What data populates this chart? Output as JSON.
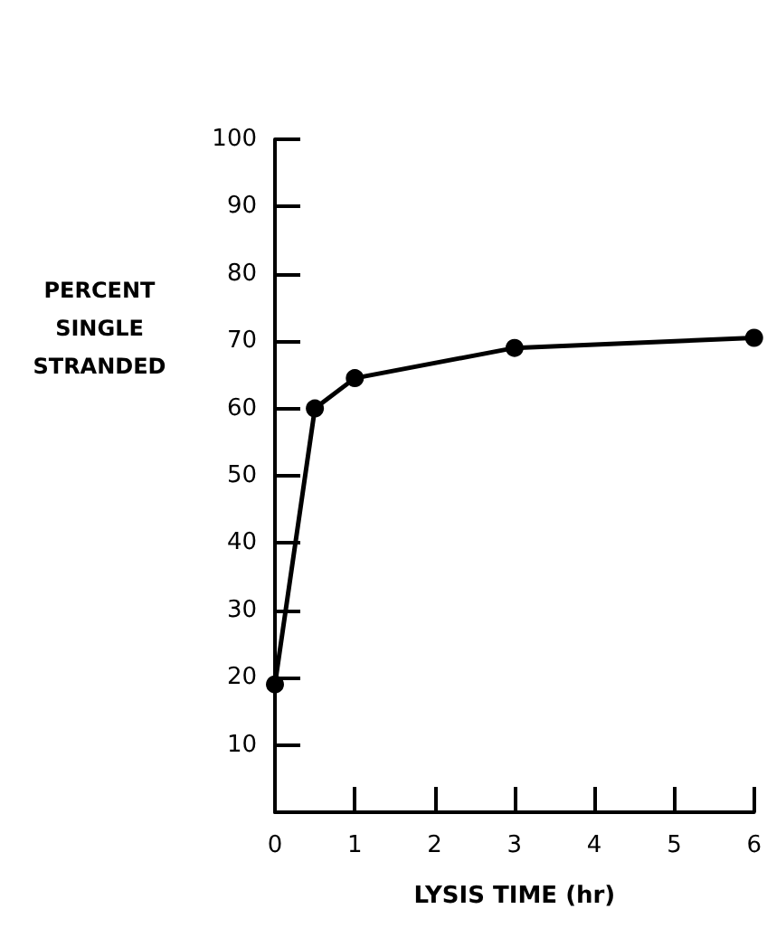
{
  "chart_data": {
    "type": "line",
    "xlabel": "LYSIS TIME (hr)",
    "ylabel": "PERCENT\nSINGLE\nSTRANDED",
    "x": [
      0,
      0.5,
      1,
      3,
      6
    ],
    "series": [
      {
        "color": "#000000",
        "values": [
          19,
          60,
          64.5,
          69,
          70.5
        ]
      }
    ],
    "xlim": [
      0,
      6
    ],
    "xticks": [
      0,
      1,
      2,
      3,
      4,
      5,
      6
    ],
    "ylim": [
      0,
      100
    ],
    "yticks": [
      10,
      20,
      30,
      40,
      50,
      60,
      70,
      80,
      90,
      100
    ],
    "grid": false,
    "marker": "circle",
    "line_style": "solid"
  }
}
